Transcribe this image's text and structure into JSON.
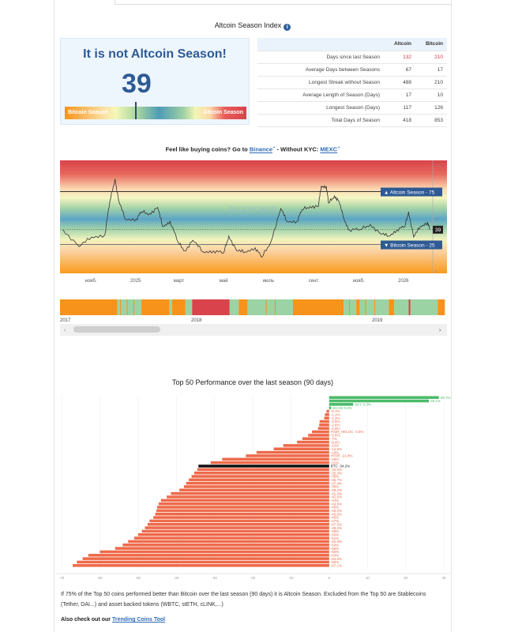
{
  "header": {
    "title": "Altcoin Season Index",
    "info_icon": "info-icon"
  },
  "gauge": {
    "headline": "It is not Altcoin Season!",
    "value": 39,
    "left_label": "Bitcoin Season",
    "right_label": "Altcoin Season"
  },
  "stats": {
    "columns": [
      "Altcoin",
      "Bitcoin"
    ],
    "rows": [
      {
        "label": "Days since last Season",
        "altcoin": "132",
        "bitcoin": "210",
        "highlight": true
      },
      {
        "label": "Average Days between Seasons",
        "altcoin": "67",
        "bitcoin": "17"
      },
      {
        "label": "Longest Streak without Season",
        "altcoin": "488",
        "bitcoin": "210"
      },
      {
        "label": "Average Length of Season (Days)",
        "altcoin": "17",
        "bitcoin": "10"
      },
      {
        "label": "Longest Season (Days)",
        "altcoin": "117",
        "bitcoin": "126"
      },
      {
        "label": "Total Days of Season",
        "altcoin": "418",
        "bitcoin": "853"
      }
    ]
  },
  "buy": {
    "prefix": "Feel like buying coins? Go to ",
    "binance": "Binance",
    "middle": " - Without KYC: ",
    "mexc": "MEXC"
  },
  "colors": {
    "btc_season": "#f7931a",
    "alt_season": "#d9434b",
    "neutral": "#9bd3a4",
    "accent": "#2e5a95",
    "bar_negative": "#ee6a4a",
    "bar_positive": "#4cbb6a",
    "bar_btc": "#111111"
  },
  "chart_data": [
    {
      "type": "line",
      "ylim": [
        0,
        100
      ],
      "current_value_label": "39",
      "thresholds": [
        {
          "label": "▲ Altcoin Season - 75",
          "value": 75
        },
        {
          "label": "▼ Bitcoin Season - 25",
          "value": 25
        }
      ],
      "x_ticks": [
        {
          "label": "нояб.",
          "date": "2024-11-01"
        },
        {
          "label": "2025",
          "date": "2025-01-01"
        },
        {
          "label": "март",
          "date": "2025-03-01"
        },
        {
          "label": "май",
          "date": "2025-05-01"
        },
        {
          "label": "июль",
          "date": "2025-07-01"
        },
        {
          "label": "сент.",
          "date": "2025-09-01"
        },
        {
          "label": "нояб.",
          "date": "2025-11-01"
        },
        {
          "label": "2026",
          "date": "2026-01-01"
        }
      ],
      "points": [
        [
          "2024-09-24",
          39
        ],
        [
          "2024-10-16",
          23
        ],
        [
          "2024-11-02",
          32
        ],
        [
          "2024-11-20",
          34
        ],
        [
          "2024-11-27",
          66
        ],
        [
          "2024-12-04",
          87
        ],
        [
          "2024-12-09",
          66
        ],
        [
          "2024-12-18",
          49
        ],
        [
          "2025-01-02",
          49
        ],
        [
          "2025-01-09",
          56
        ],
        [
          "2025-01-20",
          54
        ],
        [
          "2025-01-31",
          60
        ],
        [
          "2025-02-07",
          42
        ],
        [
          "2025-02-17",
          47
        ],
        [
          "2025-02-28",
          27
        ],
        [
          "2025-03-09",
          19
        ],
        [
          "2025-03-20",
          29
        ],
        [
          "2025-04-03",
          18
        ],
        [
          "2025-04-17",
          19
        ],
        [
          "2025-05-01",
          17
        ],
        [
          "2025-05-08",
          33
        ],
        [
          "2025-05-19",
          19
        ],
        [
          "2025-05-30",
          18
        ],
        [
          "2025-06-13",
          22
        ],
        [
          "2025-06-22",
          13
        ],
        [
          "2025-07-04",
          27
        ],
        [
          "2025-07-18",
          59
        ],
        [
          "2025-07-26",
          47
        ],
        [
          "2025-08-09",
          47
        ],
        [
          "2025-08-16",
          58
        ],
        [
          "2025-08-27",
          61
        ],
        [
          "2025-09-07",
          61
        ],
        [
          "2025-09-11",
          80
        ],
        [
          "2025-09-18",
          80
        ],
        [
          "2025-09-21",
          64
        ],
        [
          "2025-09-29",
          71
        ],
        [
          "2025-10-05",
          66
        ],
        [
          "2025-10-12",
          49
        ],
        [
          "2025-10-19",
          39
        ],
        [
          "2025-11-03",
          39
        ],
        [
          "2025-11-17",
          44
        ],
        [
          "2025-12-01",
          35
        ],
        [
          "2025-12-12",
          33
        ],
        [
          "2025-12-23",
          39
        ],
        [
          "2026-01-03",
          42
        ],
        [
          "2026-01-08",
          56
        ],
        [
          "2026-01-15",
          32
        ],
        [
          "2026-01-24",
          42
        ],
        [
          "2026-02-03",
          46
        ],
        [
          "2026-02-06",
          39
        ]
      ]
    },
    {
      "type": "bar",
      "name": "navigator",
      "x_ticks": [
        "2017",
        "2018",
        "2019"
      ],
      "segments": [
        [
          "btc",
          2017.0,
          2017.43
        ],
        [
          "neutral",
          2017.43,
          2017.61
        ],
        [
          "btc",
          2017.61,
          2017.82
        ],
        [
          "neutral",
          2017.82,
          2017.84
        ],
        [
          "btc",
          2017.84,
          2017.94
        ],
        [
          "neutral",
          2017.94,
          2017.99
        ],
        [
          "alt",
          2017.99,
          2018.2
        ],
        [
          "neutral",
          2018.2,
          2018.25
        ],
        [
          "btc",
          2018.25,
          2018.3
        ],
        [
          "neutral",
          2018.3,
          2018.55
        ],
        [
          "btc",
          2018.55,
          2018.83
        ],
        [
          "neutral",
          2018.83,
          2018.9
        ],
        [
          "btc",
          2018.9,
          2018.92
        ],
        [
          "neutral",
          2018.92,
          2019.08
        ],
        [
          "btc",
          2019.08,
          2019.11
        ],
        [
          "neutral",
          2019.11,
          2019.19
        ],
        [
          "alt",
          2019.19,
          2019.2
        ],
        [
          "neutral",
          2019.2,
          2019.35
        ],
        [
          "btc",
          2019.35,
          2019.39
        ]
      ]
    },
    {
      "type": "bar",
      "title": "Top 50 Performance over the last season (90 days)",
      "xlim": [
        -70,
        30
      ],
      "x_ticks": [
        -70,
        -60,
        -50,
        -40,
        -30,
        -20,
        -10,
        0,
        10,
        20,
        30
      ],
      "bars": [
        {
          "label": "28.7%",
          "value": 28.7
        },
        {
          "label": "26.1%",
          "value": 26.1
        },
        {
          "label": "SKY 6.3%",
          "value": 6.3
        },
        {
          "label": "ECHO 0.5%",
          "value": 0.5
        },
        {
          "label": "-0.7%",
          "value": -0.7
        },
        {
          "label": "-1.1%",
          "value": -1.1
        },
        {
          "label": "-1.3%",
          "value": -1.3
        },
        {
          "label": "-2.5%",
          "value": -2.5
        },
        {
          "label": "-2.6%",
          "value": -2.6
        },
        {
          "label": "-2.9%",
          "value": -2.9
        },
        {
          "label": "FIGR_HELOC -4.5%",
          "value": -4.5
        },
        {
          "label": "-5.5%",
          "value": -5.5
        },
        {
          "label": "-7%",
          "value": -7
        },
        {
          "label": "-8.4%",
          "value": -8.4
        },
        {
          "label": "-12%",
          "value": -12
        },
        {
          "label": "-14.5%",
          "value": -14.5
        },
        {
          "label": "-19%",
          "value": -19
        },
        {
          "label": "HYPE -21.8%",
          "value": -21.8
        },
        {
          "label": "-28%",
          "value": -28
        },
        {
          "label": "-31%",
          "value": -31
        },
        {
          "label": "BTC -34.2%",
          "value": -34.2,
          "highlight": true
        },
        {
          "label": "-34.5%",
          "value": -34.5
        },
        {
          "label": "-35.3%",
          "value": -35.3
        },
        {
          "label": "-36%",
          "value": -36
        },
        {
          "label": "-36.7%",
          "value": -36.7
        },
        {
          "label": "-37.4%",
          "value": -37.4
        },
        {
          "label": "-38%",
          "value": -38
        },
        {
          "label": "-39.2%",
          "value": -39.2
        },
        {
          "label": "-41.4%",
          "value": -41.4
        },
        {
          "label": "-42.5%",
          "value": -42.5
        },
        {
          "label": "-44%",
          "value": -44
        },
        {
          "label": "-44.6%",
          "value": -44.6
        },
        {
          "label": "-45%",
          "value": -45
        },
        {
          "label": "-45.2%",
          "value": -45.2
        },
        {
          "label": "-45.5%",
          "value": -45.5
        },
        {
          "label": "-46%",
          "value": -46
        },
        {
          "label": "-47%",
          "value": -47
        },
        {
          "label": "-47.5%",
          "value": -47.5
        },
        {
          "label": "-48.2%",
          "value": -48.2
        },
        {
          "label": "-49%",
          "value": -49
        },
        {
          "label": "-50%",
          "value": -50
        },
        {
          "label": "-51%",
          "value": -51
        },
        {
          "label": "-52.6%",
          "value": -52.6
        },
        {
          "label": "-54%",
          "value": -54
        },
        {
          "label": "-56%",
          "value": -56
        },
        {
          "label": "-60%",
          "value": -60
        },
        {
          "label": "-63%",
          "value": -63
        },
        {
          "label": "-64.5%",
          "value": -64.5
        },
        {
          "label": "-66%",
          "value": -66
        },
        {
          "label": "-67.1%",
          "value": -67.1
        }
      ]
    }
  ],
  "footer": {
    "note": "If 75% of the Top 50 coins performed better than Bitcoin over the last season (90 days) it is Altcoin Season. Excluded from the Top 50 are Stablecoins (Tether, DAI...) and asset backed tokens (WBTC, stETH, cLINK,...)",
    "also_prefix": "Also check out our ",
    "also_link": "Trending Coins Tool"
  }
}
